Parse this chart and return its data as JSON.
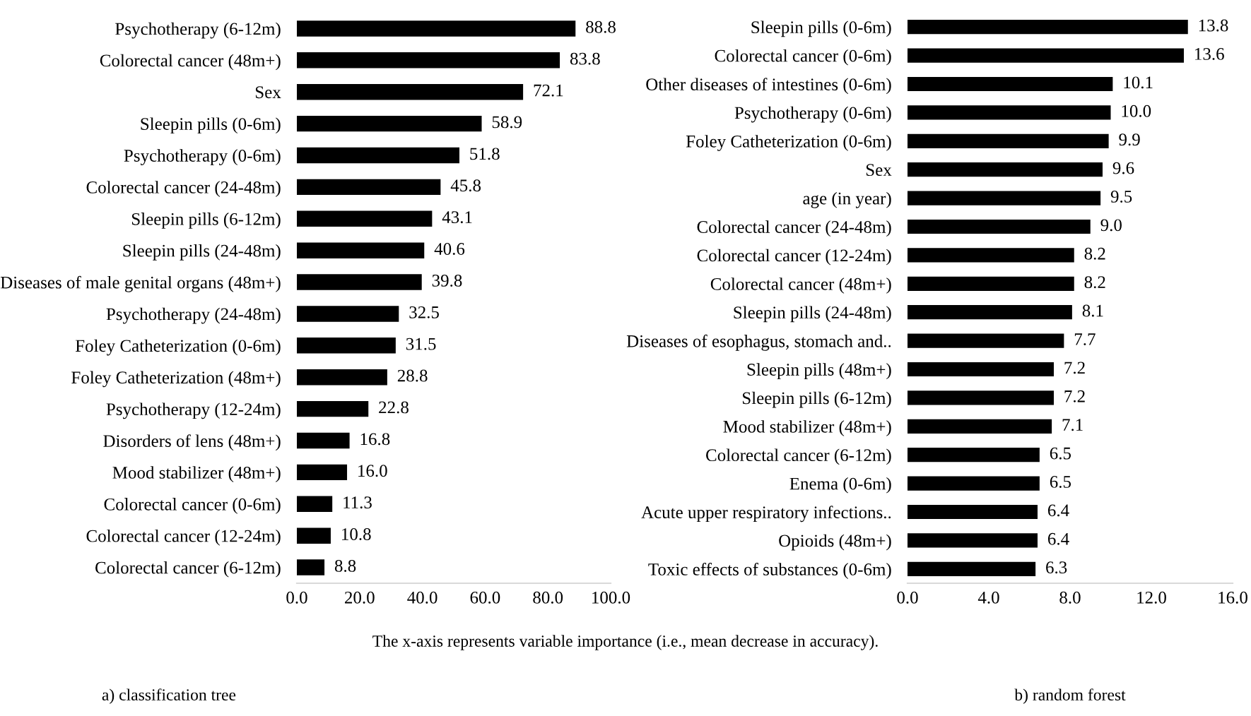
{
  "chart_data": [
    {
      "type": "bar",
      "orientation": "horizontal",
      "categories": [
        "Psychotherapy (6-12m)",
        "Colorectal cancer (48m+)",
        "Sex",
        "Sleepin pills (0-6m)",
        "Psychotherapy (0-6m)",
        "Colorectal cancer (24-48m)",
        "Sleepin pills (6-12m)",
        "Sleepin pills (24-48m)",
        "Diseases of male genital organs (48m+)",
        "Psychotherapy (24-48m)",
        "Foley Catheterization (0-6m)",
        "Foley Catheterization (48m+)",
        "Psychotherapy (12-24m)",
        "Disorders of lens (48m+)",
        "Mood stabilizer (48m+)",
        "Colorectal cancer (0-6m)",
        "Colorectal cancer (12-24m)",
        "Colorectal cancer (6-12m)"
      ],
      "values": [
        88.8,
        83.8,
        72.1,
        58.9,
        51.8,
        45.8,
        43.1,
        40.6,
        39.8,
        32.5,
        31.5,
        28.8,
        22.8,
        16.8,
        16.0,
        11.3,
        10.8,
        8.8
      ],
      "value_labels": [
        "88.8",
        "83.8",
        "72.1",
        "58.9",
        "51.8",
        "45.8",
        "43.1",
        "40.6",
        "39.8",
        "32.5",
        "31.5",
        "28.8",
        "22.8",
        "16.8",
        "16.0",
        "11.3",
        "10.8",
        "8.8"
      ],
      "color": "#000000",
      "xlim": [
        0,
        100
      ],
      "xticks": [
        {
          "value": 0,
          "label": "0.0"
        },
        {
          "value": 20,
          "label": "20.0"
        },
        {
          "value": 40,
          "label": "40.0"
        },
        {
          "value": 60,
          "label": "60.0"
        },
        {
          "value": 80,
          "label": "80.0"
        },
        {
          "value": 100,
          "label": "100.0"
        }
      ],
      "grid": false,
      "legend": false,
      "annotations": [
        "The x-axis represents variable importance (i.e., mean decrease in accuracy).",
        "a) classification tree"
      ]
    },
    {
      "type": "bar",
      "orientation": "horizontal",
      "categories": [
        "Sleepin pills (0-6m)",
        "Colorectal cancer (0-6m)",
        "Other diseases of intestines (0-6m)",
        "Psychotherapy (0-6m)",
        "Foley Catheterization (0-6m)",
        "Sex",
        "age (in year)",
        "Colorectal cancer (24-48m)",
        "Colorectal cancer (12-24m)",
        "Colorectal cancer (48m+)",
        "Sleepin pills (24-48m)",
        "Diseases of esophagus, stomach and..",
        "Sleepin pills (48m+)",
        "Sleepin pills (6-12m)",
        "Mood stabilizer (48m+)",
        "Colorectal cancer (6-12m)",
        "Enema (0-6m)",
        "Acute upper respiratory infections..",
        "Opioids (48m+)",
        "Toxic effects of substances (0-6m)"
      ],
      "values": [
        13.8,
        13.6,
        10.1,
        10.0,
        9.9,
        9.6,
        9.5,
        9.0,
        8.2,
        8.2,
        8.1,
        7.7,
        7.2,
        7.2,
        7.1,
        6.5,
        6.5,
        6.4,
        6.4,
        6.3
      ],
      "value_labels": [
        "13.8",
        "13.6",
        "10.1",
        "10.0",
        "9.9",
        "9.6",
        "9.5",
        "9.0",
        "8.2",
        "8.2",
        "8.1",
        "7.7",
        "7.2",
        "7.2",
        "7.1",
        "6.5",
        "6.5",
        "6.4",
        "6.4",
        "6.3"
      ],
      "color": "#000000",
      "xlim": [
        0,
        16
      ],
      "xticks": [
        {
          "value": 0,
          "label": "0.0"
        },
        {
          "value": 4,
          "label": "4.0"
        },
        {
          "value": 8,
          "label": "8.0"
        },
        {
          "value": 12,
          "label": "12.0"
        },
        {
          "value": 16,
          "label": "16.0"
        }
      ],
      "grid": false,
      "legend": false,
      "annotations": [
        "b) random forest"
      ]
    }
  ]
}
